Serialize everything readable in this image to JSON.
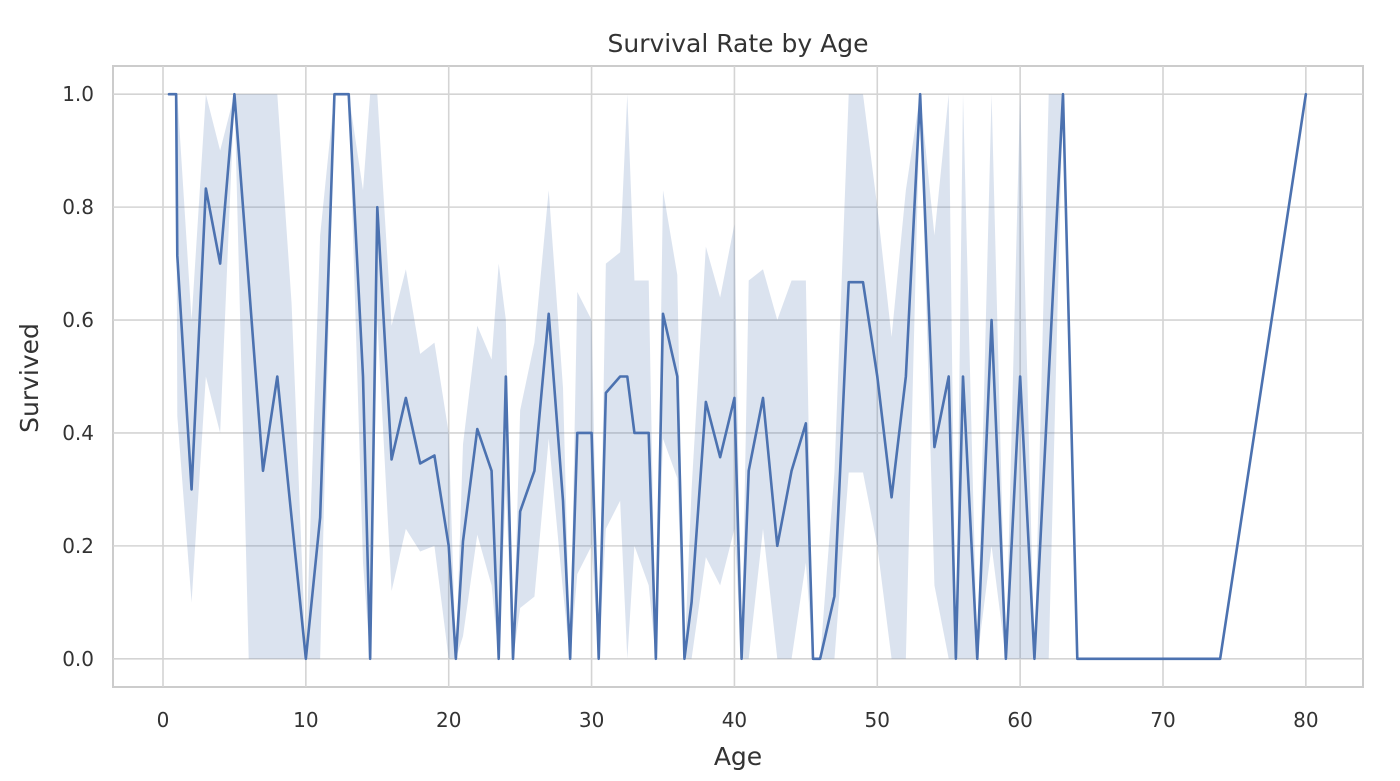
{
  "chart_data": {
    "type": "line",
    "title": "Survival Rate by Age",
    "xlabel": "Age",
    "ylabel": "Survived",
    "xlim": [
      -3.5,
      84
    ],
    "ylim": [
      -0.05,
      1.05
    ],
    "x_ticks": [
      0,
      10,
      20,
      30,
      40,
      50,
      60,
      70,
      80
    ],
    "y_ticks": [
      0.0,
      0.2,
      0.4,
      0.6,
      0.8,
      1.0
    ],
    "x_tick_labels": [
      "0",
      "10",
      "20",
      "30",
      "40",
      "50",
      "60",
      "70",
      "80"
    ],
    "y_tick_labels": [
      "0.0",
      "0.2",
      "0.4",
      "0.6",
      "0.8",
      "1.0"
    ],
    "grid": true,
    "colors": {
      "line": "#4c72b0",
      "band": "#4c72b0",
      "grid": "#d4d4d4",
      "frame": "#cccccc"
    },
    "series": [
      {
        "x": [
          0.42,
          0.75,
          0.83,
          0.92,
          1,
          2,
          3,
          4,
          5,
          6,
          7,
          8,
          9,
          10,
          11,
          12,
          13,
          14,
          14.5,
          15,
          16,
          17,
          18,
          19,
          20,
          20.5,
          21,
          22,
          23,
          23.5,
          24,
          24.5,
          25,
          26,
          27,
          28,
          28.5,
          29,
          30,
          30.5,
          31,
          32,
          32.5,
          33,
          34,
          34.5,
          35,
          36,
          36.5,
          37,
          38,
          39,
          40,
          40.5,
          41,
          42,
          43,
          44,
          45,
          45.5,
          46,
          47,
          48,
          49,
          50,
          51,
          52,
          53,
          54,
          55,
          55.5,
          56,
          57,
          58,
          59,
          60,
          61,
          62,
          63,
          64,
          65,
          66,
          70,
          70.5,
          71,
          74,
          80
        ],
        "y": [
          1.0,
          1.0,
          1.0,
          1.0,
          0.714,
          0.3,
          0.833,
          0.7,
          1.0,
          0.667,
          0.333,
          0.5,
          0.25,
          0.0,
          0.25,
          1.0,
          1.0,
          0.5,
          0.0,
          0.8,
          0.353,
          0.462,
          0.346,
          0.36,
          0.2,
          0.0,
          0.208,
          0.407,
          0.333,
          0.0,
          0.5,
          0.0,
          0.261,
          0.333,
          0.611,
          0.28,
          0.0,
          0.4,
          0.4,
          0.0,
          0.471,
          0.5,
          0.5,
          0.4,
          0.4,
          0.0,
          0.611,
          0.5,
          0.0,
          0.1,
          0.455,
          0.357,
          0.462,
          0.0,
          0.333,
          0.462,
          0.2,
          0.333,
          0.417,
          0.0,
          0.0,
          0.111,
          0.667,
          0.667,
          0.5,
          0.286,
          0.5,
          1.0,
          0.375,
          0.5,
          0.0,
          0.5,
          0.0,
          0.6,
          0.0,
          0.5,
          0.0,
          0.5,
          1.0,
          0.0,
          0.0,
          0.0,
          0.0,
          0.0,
          0.0,
          0.0,
          1.0
        ],
        "ci_low": [
          1.0,
          1.0,
          1.0,
          1.0,
          0.43,
          0.1,
          0.5,
          0.4,
          1.0,
          0.0,
          0.0,
          0.0,
          0.0,
          0.0,
          0.0,
          1.0,
          1.0,
          0.17,
          0.0,
          0.6,
          0.12,
          0.23,
          0.19,
          0.2,
          0.0,
          0.0,
          0.04,
          0.22,
          0.13,
          0.0,
          0.3,
          0.0,
          0.09,
          0.11,
          0.39,
          0.12,
          0.0,
          0.15,
          0.2,
          0.0,
          0.23,
          0.28,
          0.0,
          0.2,
          0.13,
          0.0,
          0.39,
          0.32,
          0.0,
          0.0,
          0.18,
          0.13,
          0.23,
          0.0,
          0.0,
          0.23,
          0.0,
          0.0,
          0.17,
          0.0,
          0.0,
          0.0,
          0.33,
          0.33,
          0.2,
          0.0,
          0.0,
          1.0,
          0.13,
          0.0,
          0.0,
          0.0,
          0.0,
          0.2,
          0.0,
          0.0,
          0.0,
          0.0,
          1.0,
          0.0,
          0.0,
          0.0,
          0.0,
          0.0,
          0.0,
          0.0,
          1.0
        ],
        "ci_high": [
          1.0,
          1.0,
          1.0,
          1.0,
          1.0,
          0.6,
          1.0,
          0.9,
          1.0,
          1.0,
          1.0,
          1.0,
          0.63,
          0.0,
          0.75,
          1.0,
          1.0,
          0.83,
          1.0,
          1.0,
          0.59,
          0.69,
          0.54,
          0.56,
          0.4,
          0.0,
          0.38,
          0.59,
          0.53,
          0.7,
          0.6,
          0.0,
          0.44,
          0.56,
          0.83,
          0.48,
          0.0,
          0.65,
          0.6,
          0.0,
          0.7,
          0.72,
          1.0,
          0.67,
          0.67,
          0.0,
          0.83,
          0.68,
          0.0,
          0.3,
          0.73,
          0.64,
          0.77,
          0.0,
          0.67,
          0.69,
          0.6,
          0.67,
          0.67,
          0.0,
          0.0,
          0.33,
          1.0,
          1.0,
          0.8,
          0.57,
          0.83,
          1.0,
          0.75,
          1.0,
          0.0,
          1.0,
          0.0,
          1.0,
          0.0,
          1.0,
          0.0,
          1.0,
          1.0,
          0.0,
          0.0,
          0.0,
          0.0,
          0.0,
          0.0,
          0.0,
          1.0
        ]
      }
    ]
  }
}
